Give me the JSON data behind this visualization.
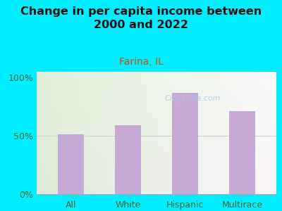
{
  "title": "Change in per capita income between\n2000 and 2022",
  "subtitle": "Farina, IL",
  "categories": [
    "All",
    "White",
    "Hispanic",
    "Multirace"
  ],
  "values": [
    51,
    59,
    87,
    71
  ],
  "bar_color": "#c4aad4",
  "title_fontsize": 11.5,
  "subtitle_fontsize": 10,
  "subtitle_color": "#cc5500",
  "title_color": "#111111",
  "background_outer": "#00eeff",
  "ylim": [
    0,
    105
  ],
  "yticks": [
    0,
    50,
    100
  ],
  "ytick_labels": [
    "0%",
    "50%",
    "100%"
  ],
  "tick_label_color": "#336633",
  "watermark": "City-Data.com",
  "watermark_color": "#aac8d8",
  "grid50_color": "#cccccc"
}
